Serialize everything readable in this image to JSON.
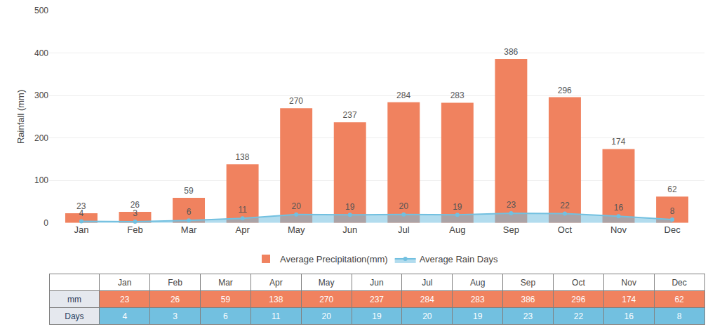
{
  "chart_data": {
    "type": "bar",
    "categories": [
      "Jan",
      "Feb",
      "Mar",
      "Apr",
      "May",
      "Jun",
      "Jul",
      "Aug",
      "Sep",
      "Oct",
      "Nov",
      "Dec"
    ],
    "series": [
      {
        "name": "Average Precipitation(mm)",
        "type": "bar",
        "color": "#F0825F",
        "values": [
          23,
          26,
          59,
          138,
          270,
          237,
          284,
          283,
          386,
          296,
          174,
          62
        ]
      },
      {
        "name": "Average Rain Days",
        "type": "area",
        "color": "#72C0E0",
        "marker": "circle",
        "values": [
          4,
          3,
          6,
          11,
          20,
          19,
          20,
          19,
          23,
          22,
          16,
          8
        ]
      }
    ],
    "ylabel": "Rainfall (mm)",
    "ylim": [
      0,
      500
    ],
    "yticks": [
      0,
      100,
      200,
      300,
      400,
      500
    ],
    "grid": true,
    "data_labels": true,
    "legend": "bottom",
    "table": {
      "row_labels": [
        "mm",
        "Days"
      ]
    }
  }
}
